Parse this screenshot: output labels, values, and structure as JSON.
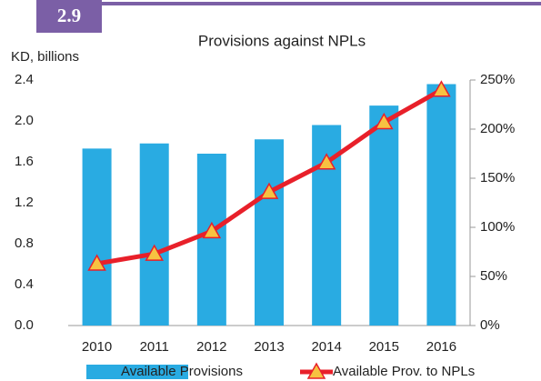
{
  "chart_data": {
    "type": "bar",
    "figure_number": "2.9",
    "title": "Provisions  against NPLs",
    "y_label": "KD, billions",
    "categories": [
      "2010",
      "2011",
      "2012",
      "2013",
      "2014",
      "2015",
      "2016"
    ],
    "series": [
      {
        "name": "Available Provisions",
        "type": "bar",
        "color": "#29abe2",
        "values": [
          1.73,
          1.78,
          1.68,
          1.82,
          1.96,
          2.15,
          2.36
        ]
      },
      {
        "name": "Available Prov. to NPLs",
        "type": "line",
        "axis": "y2",
        "color": "#e8202a",
        "marker_color": "#f7c241",
        "values": [
          63,
          73,
          96,
          136,
          166,
          207,
          240
        ]
      }
    ],
    "ylim": [
      0,
      2.4
    ],
    "yticks": [
      {
        "value": 0,
        "label": "0.0"
      },
      0.4,
      0.8,
      1.2,
      1.6,
      {
        "value": 2,
        "label": "2.0"
      },
      2.4
    ],
    "y2lim": [
      0,
      250
    ],
    "y2ticks": [
      {
        "value": 0,
        "label": "0%"
      },
      {
        "value": 50,
        "label": "50%"
      },
      {
        "value": 100,
        "label": "100%"
      },
      {
        "value": 150,
        "label": "150%"
      },
      {
        "value": 200,
        "label": "200%"
      },
      {
        "value": 250,
        "label": "250%"
      }
    ],
    "grid": false
  }
}
